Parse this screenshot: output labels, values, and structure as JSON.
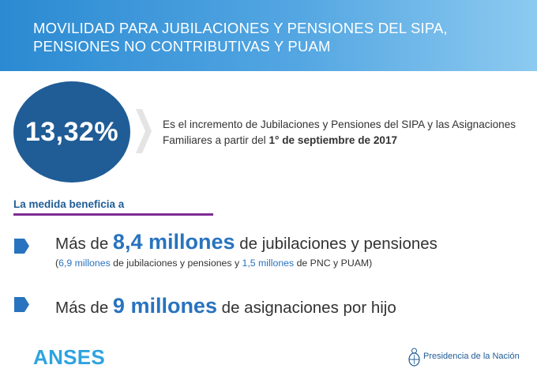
{
  "header": {
    "line1": "MOVILIDAD PARA JUBILACIONES Y PENSIONES DEL SIPA,",
    "line2": "PENSIONES NO CONTRIBUTIVAS Y PUAM"
  },
  "highlight": {
    "percentage": "13,32%",
    "text_prefix": "Es el incremento  de Jubilaciones y Pensiones del SIPA y las Asignaciones Familiares a partir del ",
    "text_bold": "1° de septiembre de 2017"
  },
  "benefit_label": "La medida beneficia a",
  "items": [
    {
      "prefix": "Más de ",
      "big": "8,4 millones",
      "suffix": " de jubilaciones y pensiones",
      "sub": {
        "open": "(",
        "hl1": "6,9 millones",
        "mid1": " de jubilaciones y pensiones y ",
        "hl2": "1,5 millones",
        "mid2": " de PNC y PUAM)"
      }
    },
    {
      "prefix": "Más de ",
      "big": "9 millones",
      "suffix": " de asignaciones por hijo"
    }
  ],
  "footer": {
    "logo_text": "ANSES",
    "presidencia": "Presidencia de la Nación"
  },
  "colors": {
    "header_start": "#2b8ad2",
    "circle": "#205d96",
    "accent_blue": "#2873bf",
    "underline_purple": "#7e2c92",
    "anses_blue": "#2ea3e0"
  },
  "icons": [
    "chevron-right-icon",
    "bullet-arrow-icon",
    "coat-of-arms-icon"
  ]
}
